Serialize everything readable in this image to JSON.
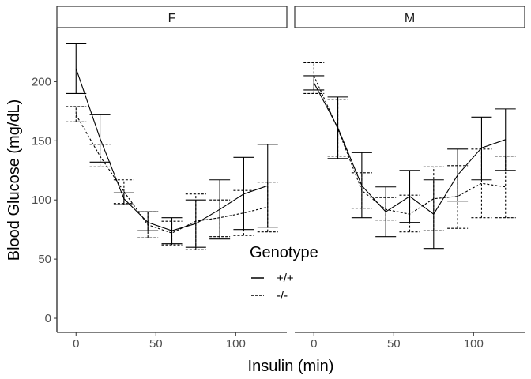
{
  "chart_data": {
    "type": "line",
    "title": "",
    "xlabel": "Insulin (min)",
    "ylabel": "Blood Glucose (mg/dL)",
    "xlim": [
      -12,
      132
    ],
    "ylim": [
      -12,
      245
    ],
    "x_ticks": [
      0,
      50,
      100
    ],
    "y_ticks": [
      0,
      50,
      100,
      150,
      200
    ],
    "grid": false,
    "legend": {
      "title": "Genotype",
      "placement": "center-bottom",
      "entries": [
        {
          "label": "+/+",
          "line": "solid"
        },
        {
          "label": "-/-",
          "line": "dashed"
        }
      ]
    },
    "panels": [
      {
        "label": "F",
        "series": [
          {
            "name": "+/+",
            "line": "solid",
            "x": [
              0,
              15,
              30,
              45,
              60,
              75,
              90,
              105,
              120
            ],
            "y": [
              211,
              152,
              101,
              81,
              74,
              80,
              92,
              105,
              112
            ],
            "lower": [
              190,
              132,
              96,
              74,
              63,
              60,
              67,
              75,
              77
            ],
            "upper": [
              232,
              172,
              106,
              90,
              85,
              100,
              117,
              136,
              147
            ]
          },
          {
            "name": "-/-",
            "line": "dashed",
            "x": [
              0,
              15,
              30,
              45,
              60,
              75,
              90,
              105,
              120
            ],
            "y": [
              172,
              137,
              107,
              79,
              72,
              82,
              85,
              89,
              94
            ],
            "lower": [
              166,
              128,
              97,
              68,
              62,
              58,
              69,
              70,
              73
            ],
            "upper": [
              179,
              147,
              117,
              90,
              82,
              105,
              100,
              108,
              115
            ]
          }
        ]
      },
      {
        "label": "M",
        "series": [
          {
            "name": "+/+",
            "line": "solid",
            "x": [
              0,
              15,
              30,
              45,
              60,
              75,
              90,
              105,
              120
            ],
            "y": [
              199,
              161,
              112,
              90,
              103,
              88,
              121,
              144,
              151
            ],
            "lower": [
              193,
              135,
              85,
              69,
              81,
              59,
              99,
              117,
              125
            ],
            "upper": [
              205,
              187,
              140,
              111,
              125,
              117,
              143,
              170,
              177
            ]
          },
          {
            "name": "-/-",
            "line": "dashed",
            "x": [
              0,
              15,
              30,
              45,
              60,
              75,
              90,
              105,
              120
            ],
            "y": [
              205,
              160,
              108,
              92,
              88,
              101,
              103,
              114,
              111
            ],
            "lower": [
              190,
              137,
              93,
              83,
              73,
              74,
              76,
              85,
              85
            ],
            "upper": [
              216,
              185,
              123,
              102,
              104,
              128,
              129,
              143,
              137
            ]
          }
        ]
      }
    ]
  }
}
